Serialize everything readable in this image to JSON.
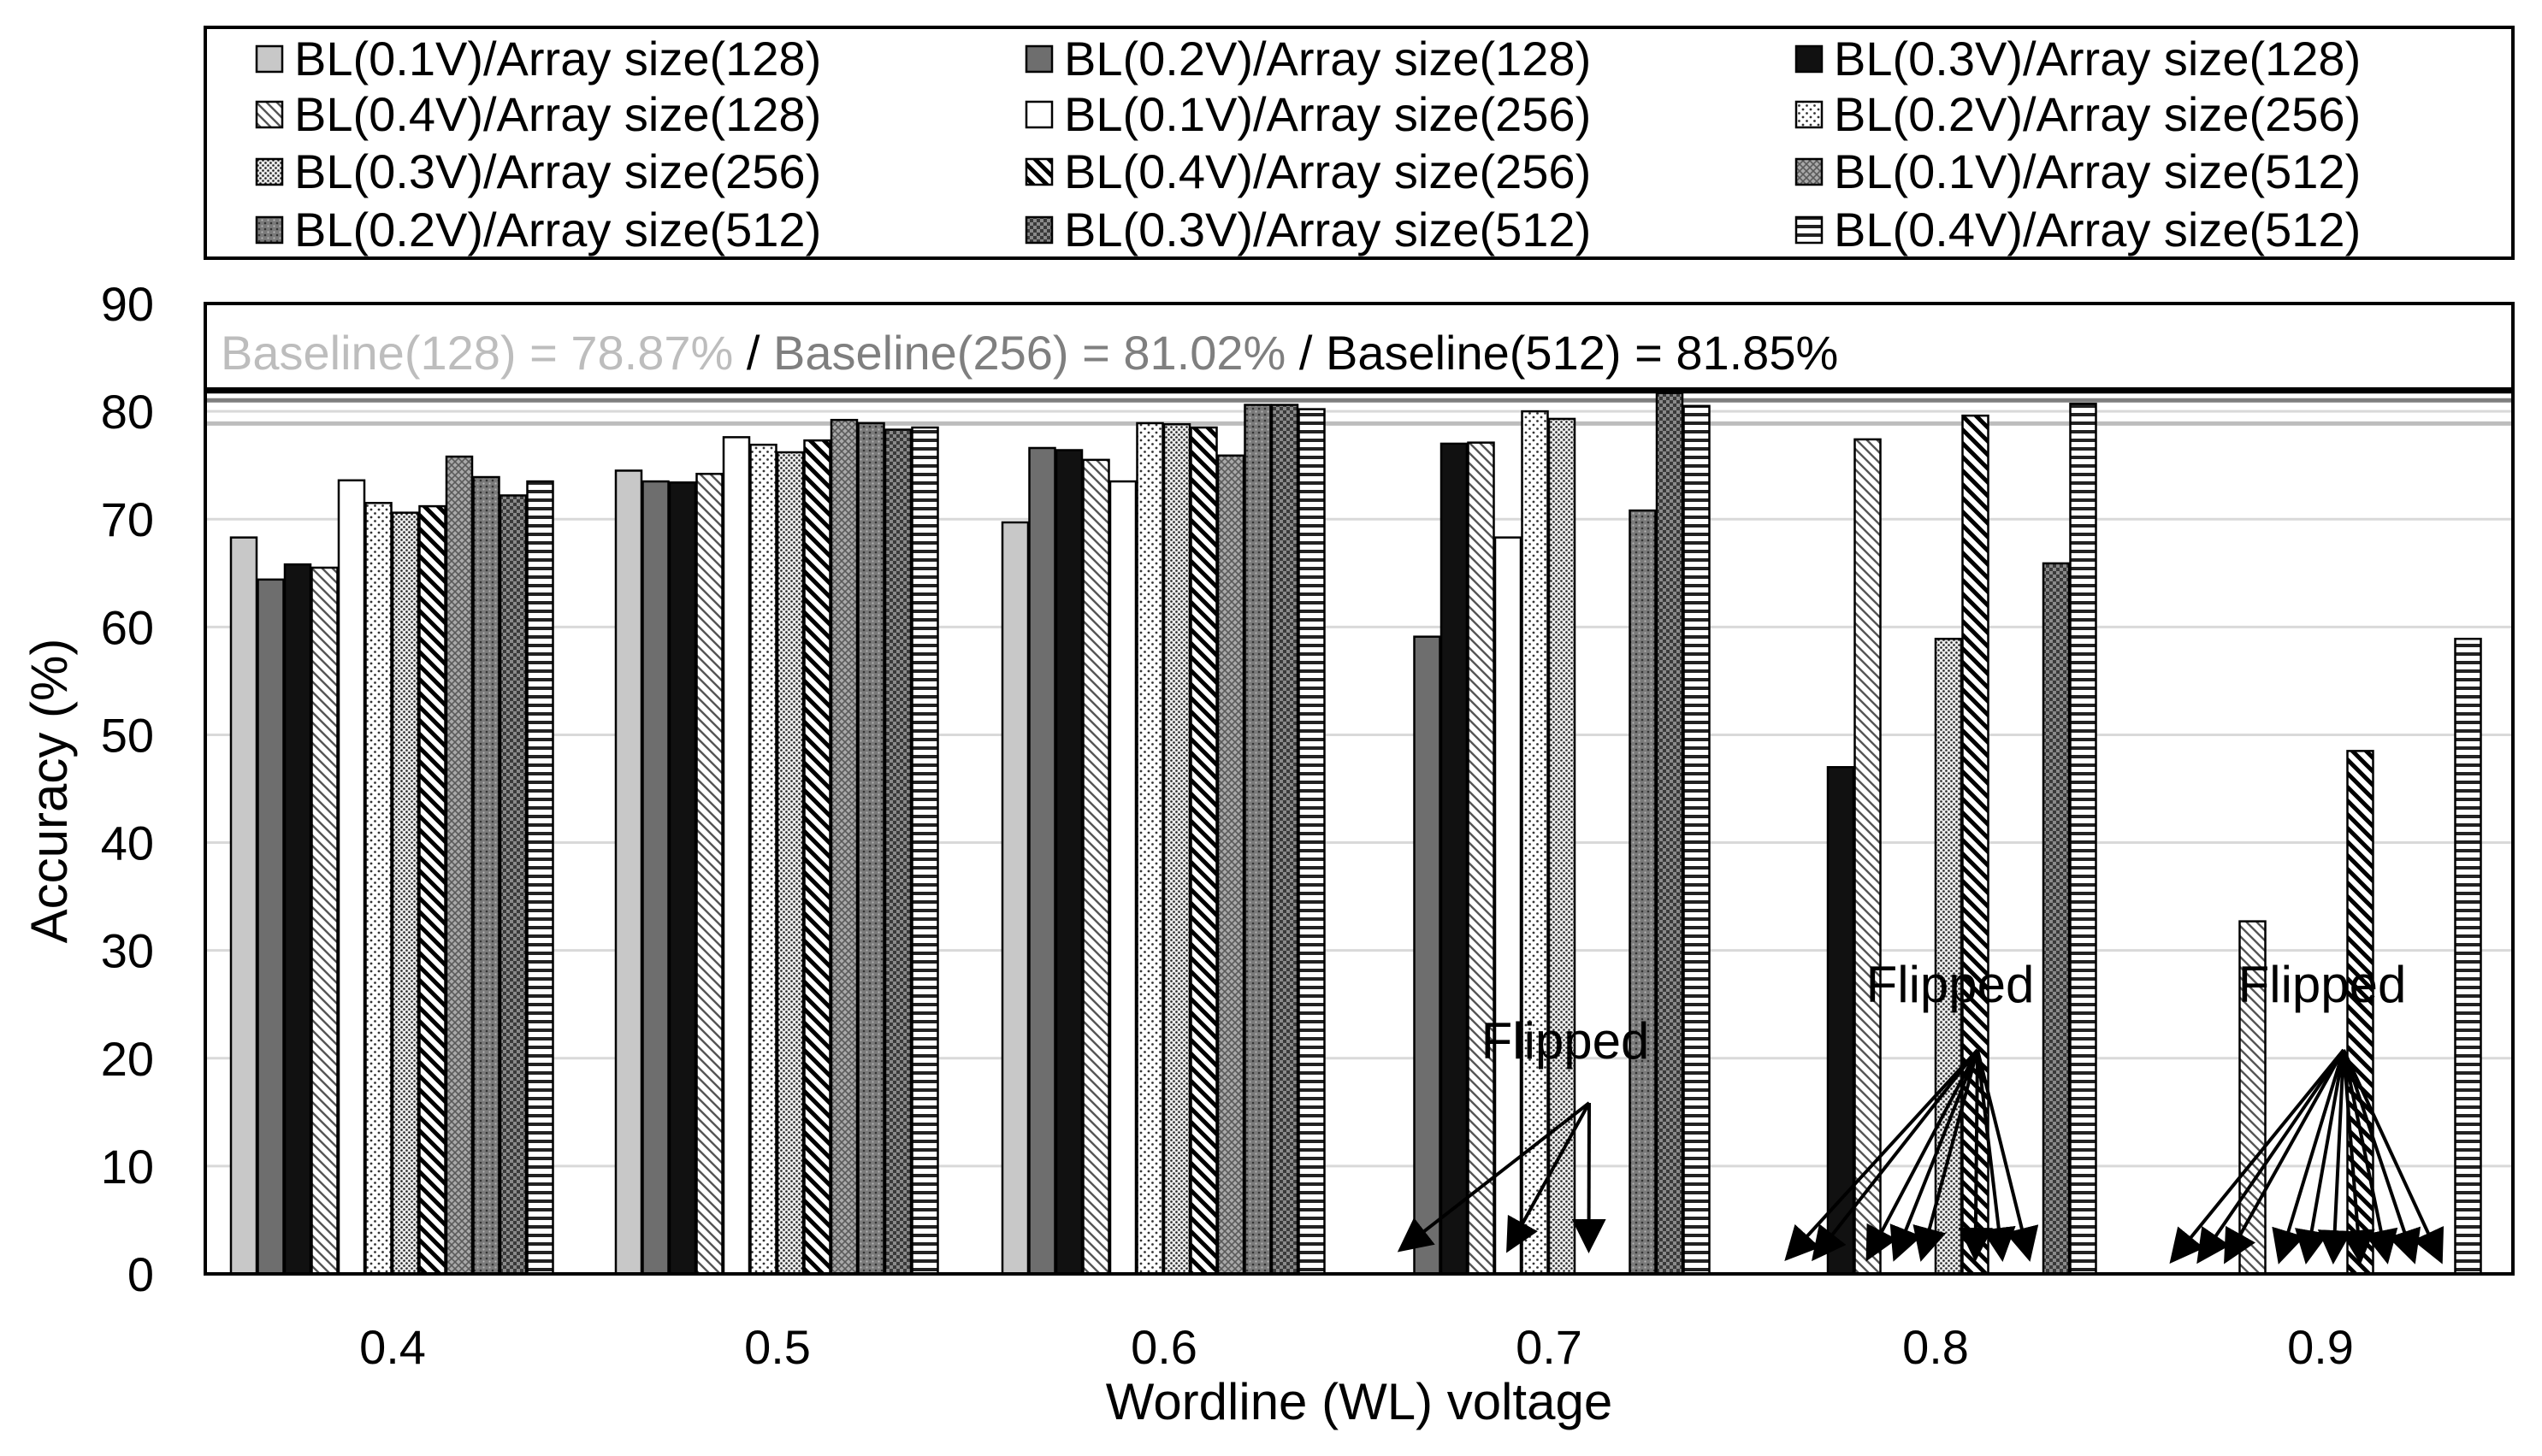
{
  "chart_data": {
    "type": "bar",
    "title": "",
    "xlabel": "Wordline (WL) voltage",
    "ylabel": "Accuracy (%)",
    "ylim": [
      0,
      90
    ],
    "yticks": [
      "0",
      "10",
      "20",
      "30",
      "40",
      "50",
      "60",
      "70",
      "80",
      "90"
    ],
    "categories": [
      "0.4",
      "0.5",
      "0.6",
      "0.7",
      "0.8",
      "0.9"
    ],
    "series": [
      {
        "name": "BL(0.1V)/Array size(128)",
        "pattern": "light",
        "values": [
          68.3,
          74.5,
          69.7,
          null,
          null,
          null
        ]
      },
      {
        "name": "BL(0.2V)/Array size(128)",
        "pattern": "dark",
        "values": [
          64.4,
          73.5,
          76.6,
          59.1,
          null,
          null
        ]
      },
      {
        "name": "BL(0.3V)/Array size(128)",
        "pattern": "black",
        "values": [
          65.8,
          73.4,
          76.4,
          77.0,
          47.0,
          null
        ]
      },
      {
        "name": "BL(0.4V)/Array size(128)",
        "pattern": "diag-down-light",
        "values": [
          65.5,
          74.2,
          75.5,
          77.1,
          77.4,
          32.7
        ]
      },
      {
        "name": "BL(0.1V)/Array size(256)",
        "pattern": "white",
        "values": [
          73.6,
          77.6,
          73.5,
          68.3,
          null,
          null
        ]
      },
      {
        "name": "BL(0.2V)/Array size(256)",
        "pattern": "dots-small",
        "values": [
          71.5,
          76.9,
          78.9,
          80.0,
          null,
          null
        ]
      },
      {
        "name": "BL(0.3V)/Array size(256)",
        "pattern": "dots-dense",
        "values": [
          70.6,
          76.2,
          78.8,
          79.3,
          58.9,
          null
        ]
      },
      {
        "name": "BL(0.4V)/Array size(256)",
        "pattern": "diag-down-heavy",
        "values": [
          71.2,
          77.3,
          78.5,
          null,
          79.6,
          48.5
        ]
      },
      {
        "name": "BL(0.1V)/Array size(512)",
        "pattern": "grid-gray",
        "values": [
          75.8,
          79.2,
          75.9,
          null,
          null,
          null
        ]
      },
      {
        "name": "BL(0.2V)/Array size(512)",
        "pattern": "gray-dots",
        "values": [
          73.9,
          78.9,
          80.6,
          70.8,
          null,
          null
        ]
      },
      {
        "name": "BL(0.3V)/Array size(512)",
        "pattern": "checker-dark",
        "values": [
          72.2,
          78.3,
          80.6,
          81.7,
          65.9,
          null
        ]
      },
      {
        "name": "BL(0.4V)/Array size(512)",
        "pattern": "horiz",
        "values": [
          73.5,
          78.5,
          80.2,
          80.5,
          80.7,
          58.9
        ]
      }
    ],
    "baselines": [
      {
        "label": "Baseline(128) = 78.87%",
        "value": 78.87,
        "color": "#bdbdbd"
      },
      {
        "label": "Baseline(256) = 81.02%",
        "value": 81.02,
        "color": "#7f7f7f"
      },
      {
        "label": "Baseline(512) = 81.85%",
        "value": 81.85,
        "color": "#000000"
      }
    ],
    "baseline_separator": " / ",
    "annotations": [
      {
        "text": "Flipped",
        "category": "0.7",
        "targets": [
          0,
          4,
          7
        ]
      },
      {
        "text": "Flipped",
        "category": "0.8",
        "targets": [
          0,
          1,
          3,
          4,
          5,
          7,
          8,
          9
        ]
      },
      {
        "text": "Flipped",
        "category": "0.9",
        "targets": [
          0,
          1,
          2,
          4,
          5,
          6,
          7,
          8,
          9,
          10
        ]
      }
    ],
    "legend_position": "top"
  },
  "colors": {
    "light": "#c8c8c8",
    "dark": "#6e6e6e",
    "black": "#111111",
    "gridline": "#d9d9d9"
  }
}
